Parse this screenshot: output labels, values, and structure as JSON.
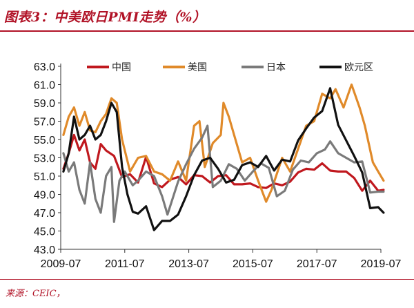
{
  "header": {
    "title": "图表3：中美欧日PMI走势（%）"
  },
  "footer": {
    "source": "来源：CEIC，"
  },
  "chart_data": {
    "type": "line",
    "title": "图表3：中美欧日PMI走势（%）",
    "xlabel": "",
    "ylabel": "",
    "ylim": [
      43.0,
      63.0
    ],
    "yticks": [
      "63.0",
      "61.0",
      "59.0",
      "57.0",
      "55.0",
      "53.0",
      "51.0",
      "49.0",
      "47.0",
      "45.0",
      "43.0"
    ],
    "xticks": [
      "2009-07",
      "2011-07",
      "2013-07",
      "2015-07",
      "2017-07",
      "2019-07"
    ],
    "grid": false,
    "legend_position": "top",
    "series": [
      {
        "name": "中国",
        "color": "#c0181e",
        "x": [
          "2009-08",
          "2009-10",
          "2009-12",
          "2010-02",
          "2010-04",
          "2010-06",
          "2010-08",
          "2010-10",
          "2010-12",
          "2011-03",
          "2011-06",
          "2011-09",
          "2011-12",
          "2012-03",
          "2012-06",
          "2012-09",
          "2012-12",
          "2013-03",
          "2013-06",
          "2013-09",
          "2013-12",
          "2014-03",
          "2014-06",
          "2014-09",
          "2014-12",
          "2015-03",
          "2015-06",
          "2015-09",
          "2015-12",
          "2016-03",
          "2016-06",
          "2016-09",
          "2016-12",
          "2017-03",
          "2017-06",
          "2017-09",
          "2017-12",
          "2018-03",
          "2018-06",
          "2018-09",
          "2018-12",
          "2019-03",
          "2019-06",
          "2019-08"
        ],
        "y": [
          51.8,
          53.5,
          55.5,
          53.8,
          55.0,
          52.5,
          51.8,
          54.5,
          53.8,
          53.2,
          50.9,
          51.2,
          50.3,
          53.1,
          50.2,
          49.8,
          50.6,
          50.9,
          50.1,
          51.1,
          51.0,
          50.3,
          51.0,
          51.1,
          50.1,
          50.1,
          50.2,
          49.8,
          49.7,
          50.2,
          50.0,
          50.4,
          51.4,
          51.8,
          51.7,
          52.4,
          51.6,
          51.5,
          51.5,
          50.8,
          49.4,
          50.5,
          49.4,
          49.5
        ]
      },
      {
        "name": "美国",
        "color": "#e08a2a",
        "x": [
          "2009-08",
          "2009-10",
          "2009-12",
          "2010-02",
          "2010-04",
          "2010-06",
          "2010-08",
          "2010-10",
          "2010-12",
          "2011-02",
          "2011-04",
          "2011-06",
          "2011-09",
          "2011-12",
          "2012-03",
          "2012-06",
          "2012-09",
          "2012-12",
          "2013-03",
          "2013-06",
          "2013-09",
          "2013-11",
          "2014-01",
          "2014-04",
          "2014-07",
          "2014-08",
          "2014-10",
          "2014-12",
          "2015-03",
          "2015-06",
          "2015-09",
          "2015-12",
          "2016-02",
          "2016-06",
          "2016-09",
          "2016-12",
          "2017-03",
          "2017-06",
          "2017-09",
          "2017-12",
          "2018-02",
          "2018-05",
          "2018-08",
          "2018-11",
          "2019-01",
          "2019-04",
          "2019-06",
          "2019-08"
        ],
        "y": [
          55.5,
          57.5,
          58.5,
          56.5,
          58.0,
          56.0,
          55.8,
          57.0,
          57.8,
          59.5,
          59.0,
          55.0,
          51.5,
          53.0,
          53.2,
          51.5,
          51.2,
          50.5,
          52.6,
          50.5,
          56.5,
          57.0,
          52.0,
          54.6,
          55.5,
          59.0,
          57.5,
          55.5,
          52.5,
          53.0,
          50.5,
          48.2,
          49.5,
          53.0,
          51.5,
          54.0,
          56.5,
          57.0,
          60.0,
          59.5,
          60.5,
          58.5,
          61.0,
          58.5,
          56.5,
          52.5,
          51.5,
          50.5
        ]
      },
      {
        "name": "日本",
        "color": "#7a7a7a",
        "x": [
          "2009-08",
          "2009-10",
          "2009-12",
          "2010-02",
          "2010-04",
          "2010-06",
          "2010-08",
          "2010-10",
          "2010-12",
          "2011-02",
          "2011-03",
          "2011-05",
          "2011-07",
          "2011-10",
          "2011-12",
          "2012-03",
          "2012-06",
          "2012-09",
          "2012-11",
          "2013-03",
          "2013-06",
          "2013-09",
          "2013-12",
          "2014-02",
          "2014-04",
          "2014-07",
          "2014-10",
          "2015-01",
          "2015-04",
          "2015-07",
          "2015-10",
          "2016-01",
          "2016-04",
          "2016-07",
          "2016-10",
          "2017-01",
          "2017-04",
          "2017-07",
          "2017-10",
          "2017-12",
          "2018-03",
          "2018-06",
          "2018-09",
          "2018-12",
          "2019-03",
          "2019-06",
          "2019-08"
        ],
        "y": [
          53.5,
          51.5,
          52.5,
          49.5,
          48.0,
          52.5,
          48.5,
          47.0,
          51.0,
          52.0,
          46.0,
          50.5,
          51.5,
          50.0,
          50.5,
          51.5,
          51.0,
          48.8,
          46.8,
          50.4,
          52.3,
          54.0,
          55.2,
          56.5,
          49.8,
          50.5,
          52.3,
          51.8,
          50.5,
          51.5,
          52.4,
          51.9,
          48.8,
          49.4,
          51.7,
          52.7,
          52.5,
          53.5,
          53.9,
          54.8,
          53.5,
          53.0,
          52.5,
          52.6,
          49.2,
          49.3,
          49.3
        ]
      },
      {
        "name": "欧元区",
        "color": "#111111",
        "x": [
          "2009-08",
          "2009-10",
          "2009-12",
          "2010-02",
          "2010-04",
          "2010-06",
          "2010-08",
          "2010-10",
          "2010-12",
          "2011-02",
          "2011-04",
          "2011-06",
          "2011-08",
          "2011-10",
          "2011-12",
          "2012-03",
          "2012-06",
          "2012-09",
          "2012-12",
          "2013-03",
          "2013-06",
          "2013-09",
          "2013-12",
          "2014-03",
          "2014-06",
          "2014-09",
          "2014-12",
          "2015-03",
          "2015-06",
          "2015-09",
          "2015-12",
          "2016-03",
          "2016-06",
          "2016-09",
          "2016-12",
          "2017-03",
          "2017-06",
          "2017-09",
          "2017-12",
          "2018-03",
          "2018-06",
          "2018-09",
          "2018-12",
          "2019-03",
          "2019-06",
          "2019-08"
        ],
        "y": [
          51.5,
          53.5,
          57.5,
          55.0,
          55.5,
          56.5,
          55.0,
          55.5,
          57.0,
          59.0,
          58.0,
          52.0,
          49.0,
          47.1,
          46.9,
          47.7,
          45.1,
          46.1,
          46.1,
          46.8,
          48.8,
          51.1,
          52.7,
          53.0,
          51.8,
          50.3,
          50.6,
          52.2,
          52.5,
          52.0,
          53.2,
          51.6,
          52.8,
          52.6,
          54.9,
          56.2,
          57.4,
          58.1,
          60.6,
          56.6,
          54.9,
          53.2,
          51.4,
          47.5,
          47.6,
          47.0
        ]
      }
    ]
  }
}
